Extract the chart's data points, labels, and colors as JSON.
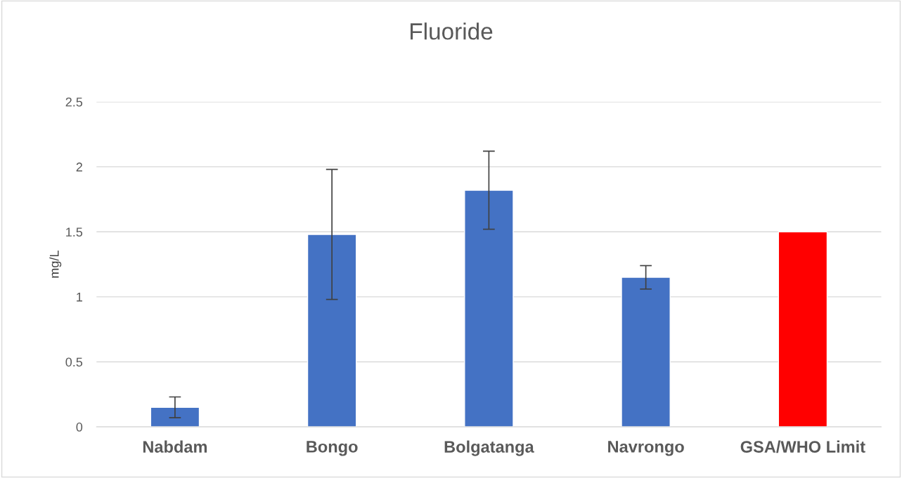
{
  "chart_data": {
    "type": "bar",
    "title": "Fluoride",
    "ylabel": "mg/L",
    "categories": [
      "Nabdam",
      "Bongo",
      "Bolgatanga",
      "Navrongo",
      "GSA/WHO Limit"
    ],
    "values": [
      0.15,
      1.48,
      1.82,
      1.15,
      1.5
    ],
    "errors": [
      0.08,
      0.5,
      0.3,
      0.09,
      null
    ],
    "colors": [
      "#4472c4",
      "#4472c4",
      "#4472c4",
      "#4472c4",
      "#ff0000"
    ],
    "ylim": [
      0,
      2.5
    ],
    "yticks": [
      0,
      0.5,
      1,
      1.5,
      2,
      2.5
    ],
    "grid": "y",
    "legend": false
  }
}
